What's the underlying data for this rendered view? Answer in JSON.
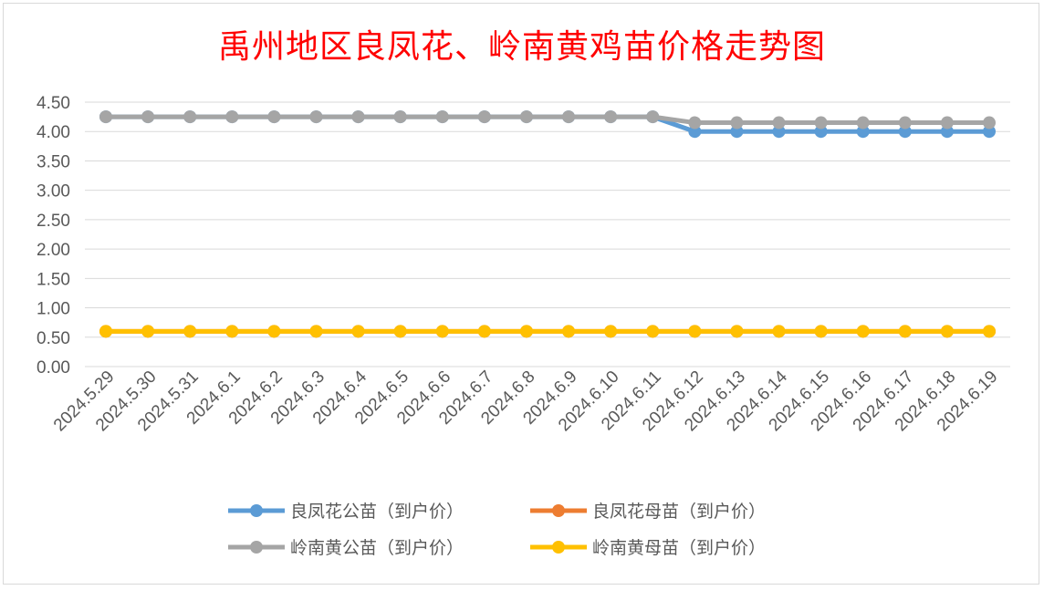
{
  "chart_data": {
    "type": "line",
    "title": "禹州地区良凤花、岭南黄鸡苗价格走势图",
    "xlabel": "",
    "ylabel": "",
    "ylim": [
      0,
      4.5
    ],
    "ytick_step": 0.5,
    "ytick_labels": [
      "0.00",
      "0.50",
      "1.00",
      "1.50",
      "2.00",
      "2.50",
      "3.00",
      "3.50",
      "4.00",
      "4.50"
    ],
    "grid": true,
    "legend_position": "bottom",
    "categories": [
      "2024.5.29",
      "2024.5.30",
      "2024.5.31",
      "2024.6.1",
      "2024.6.2",
      "2024.6.3",
      "2024.6.4",
      "2024.6.5",
      "2024.6.6",
      "2024.6.7",
      "2024.6.8",
      "2024.6.9",
      "2024.6.10",
      "2024.6.11",
      "2024.6.12",
      "2024.6.13",
      "2024.6.14",
      "2024.6.15",
      "2024.6.16",
      "2024.6.17",
      "2024.6.18",
      "2024.6.19"
    ],
    "series": [
      {
        "name": "良凤花公苗（到户价）",
        "color": "#5b9bd5",
        "values": [
          4.25,
          4.25,
          4.25,
          4.25,
          4.25,
          4.25,
          4.25,
          4.25,
          4.25,
          4.25,
          4.25,
          4.25,
          4.25,
          4.25,
          4.0,
          4.0,
          4.0,
          4.0,
          4.0,
          4.0,
          4.0,
          4.0
        ]
      },
      {
        "name": "良凤花母苗（到户价）",
        "color": "#ed7d31",
        "values": [
          0.6,
          0.6,
          0.6,
          0.6,
          0.6,
          0.6,
          0.6,
          0.6,
          0.6,
          0.6,
          0.6,
          0.6,
          0.6,
          0.6,
          0.6,
          0.6,
          0.6,
          0.6,
          0.6,
          0.6,
          0.6,
          0.6
        ]
      },
      {
        "name": "岭南黄公苗（到户价）",
        "color": "#a5a5a5",
        "values": [
          4.25,
          4.25,
          4.25,
          4.25,
          4.25,
          4.25,
          4.25,
          4.25,
          4.25,
          4.25,
          4.25,
          4.25,
          4.25,
          4.25,
          4.15,
          4.15,
          4.15,
          4.15,
          4.15,
          4.15,
          4.15,
          4.15
        ]
      },
      {
        "name": "岭南黄母苗（到户价）",
        "color": "#ffc000",
        "values": [
          0.6,
          0.6,
          0.6,
          0.6,
          0.6,
          0.6,
          0.6,
          0.6,
          0.6,
          0.6,
          0.6,
          0.6,
          0.6,
          0.6,
          0.6,
          0.6,
          0.6,
          0.6,
          0.6,
          0.6,
          0.6,
          0.6
        ]
      }
    ]
  }
}
